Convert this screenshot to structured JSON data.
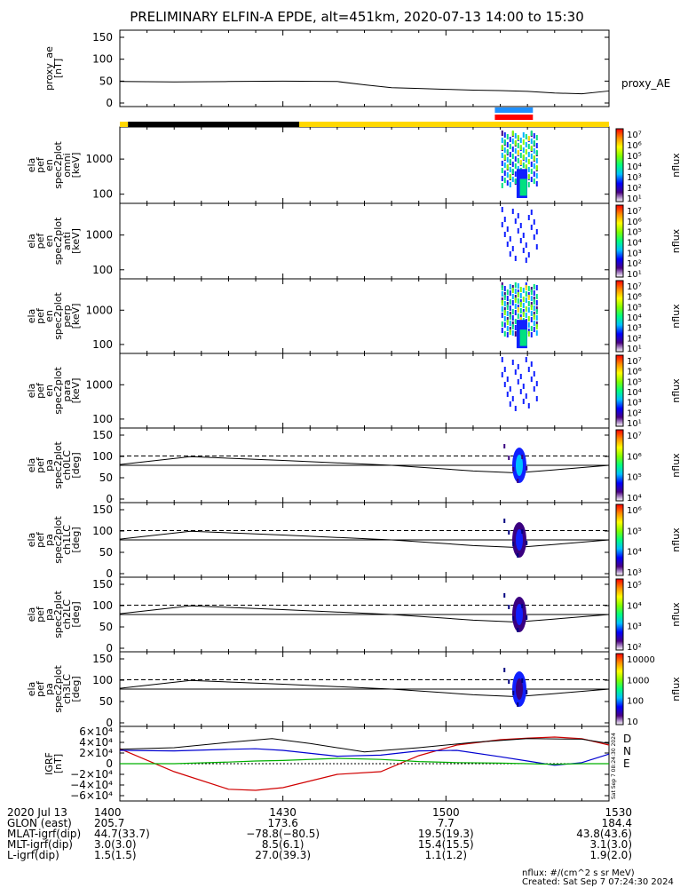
{
  "title": "PRELIMINARY ELFIN-A EPDE, alt=451km, 2020-07-13 14:00 to 15:30",
  "panels": [
    {
      "id": "proxy_ae",
      "label_lines": [
        "proxy_ae",
        "[nT]"
      ],
      "y_ticks": [
        "150",
        "100",
        "50",
        "0"
      ],
      "right_label": "proxy_AE"
    },
    {
      "id": "en_omni",
      "label_lines": [
        "ela",
        "pef",
        "en",
        "spec2plot",
        "omni",
        "[keV]"
      ],
      "y_ticks": [
        "1000",
        "100"
      ]
    },
    {
      "id": "en_anti",
      "label_lines": [
        "ela",
        "pef",
        "en",
        "spec2plot",
        "anti",
        "[keV]"
      ],
      "y_ticks": [
        "1000",
        "100"
      ]
    },
    {
      "id": "en_perp",
      "label_lines": [
        "ela",
        "pef",
        "en",
        "spec2plot",
        "perp",
        "[keV]"
      ],
      "y_ticks": [
        "1000",
        "100"
      ]
    },
    {
      "id": "en_para",
      "label_lines": [
        "ela",
        "pef",
        "en",
        "spec2plot",
        "para",
        "[keV]"
      ],
      "y_ticks": [
        "1000",
        "100"
      ]
    },
    {
      "id": "pa_ch0",
      "label_lines": [
        "ela",
        "pef",
        "pa",
        "spec2plot",
        "ch0LC",
        "[deg]"
      ],
      "y_ticks": [
        "150",
        "100",
        "50",
        "0"
      ]
    },
    {
      "id": "pa_ch1",
      "label_lines": [
        "ela",
        "pef",
        "pa",
        "spec2plot",
        "ch1LC",
        "[deg]"
      ],
      "y_ticks": [
        "150",
        "100",
        "50",
        "0"
      ]
    },
    {
      "id": "pa_ch2",
      "label_lines": [
        "ela",
        "pef",
        "pa",
        "spec2plot",
        "ch2LC",
        "[deg]"
      ],
      "y_ticks": [
        "150",
        "100",
        "50",
        "0"
      ]
    },
    {
      "id": "pa_ch3",
      "label_lines": [
        "ela",
        "pef",
        "pa",
        "spec2plot",
        "ch3LC",
        "[deg]"
      ],
      "y_ticks": [
        "150",
        "100",
        "50",
        "0"
      ]
    },
    {
      "id": "bgrf",
      "label_lines": [
        "IGRF",
        "[nT]"
      ],
      "y_ticks": [
        "6×10⁴",
        "4×10⁴",
        "2×10⁴",
        "0",
        "−2×10⁴",
        "−4×10⁴",
        "−6×10⁴"
      ],
      "legend": [
        "D",
        "N",
        "E"
      ]
    }
  ],
  "colorbars": [
    {
      "label": "nflux",
      "ticks": [
        "10⁷",
        "10⁶",
        "10⁵",
        "10⁴",
        "10³",
        "10²",
        "10¹"
      ]
    },
    {
      "label": "nflux",
      "ticks": [
        "10⁷",
        "10⁶",
        "10⁵",
        "10⁴",
        "10³",
        "10²",
        "10¹"
      ]
    },
    {
      "label": "nflux",
      "ticks": [
        "10⁷",
        "10⁶",
        "10⁵",
        "10⁴",
        "10³",
        "10²",
        "10¹"
      ]
    },
    {
      "label": "nflux",
      "ticks": [
        "10⁷",
        "10⁶",
        "10⁵",
        "10⁴",
        "10³",
        "10²",
        "10¹"
      ]
    },
    {
      "label": "nflux",
      "ticks": [
        "10⁷",
        "10⁶",
        "10⁵",
        "10⁴"
      ]
    },
    {
      "label": "nflux",
      "ticks": [
        "10⁶",
        "10⁵",
        "10⁴",
        "10³"
      ]
    },
    {
      "label": "nflux",
      "ticks": [
        "10⁵",
        "10⁴",
        "10³",
        "10²"
      ]
    },
    {
      "label": "nflux",
      "ticks": [
        "10000",
        "1000",
        "100",
        "10"
      ]
    }
  ],
  "colors": {
    "D": "#d00000",
    "N": "#0000d0",
    "E": "#00b000",
    "yellow": "#ffd800",
    "blue_bar": "#1e90ff",
    "red_bar": "#ff0000"
  },
  "time_axis": {
    "rows": [
      {
        "label": "2020 Jul 13",
        "values": [
          "1400",
          "1430",
          "1500",
          "1530"
        ]
      },
      {
        "label": "GLON (east)",
        "values": [
          "205.7",
          "173.6",
          "7.7",
          "184.4"
        ]
      },
      {
        "label": "MLAT-igrf(dip)",
        "values": [
          "44.7(33.7)",
          "−78.8(−80.5)",
          "19.5(19.3)",
          "43.8(43.6)"
        ]
      },
      {
        "label": "MLT-igrf(dip)",
        "values": [
          "3.0(3.0)",
          "8.5(6.1)",
          "15.4(15.5)",
          "3.1(3.0)"
        ]
      },
      {
        "label": "L-igrf(dip)",
        "values": [
          "1.5(1.5)",
          "27.0(39.3)",
          "1.1(1.2)",
          "1.9(2.0)"
        ]
      }
    ]
  },
  "side_stamp": "Sat Sep  7 08:24:30 2024",
  "footer": {
    "line1": "nflux: #/(cm^2 s sr MeV)",
    "line2": "Created: Sat Sep  7 07:24:30 2024"
  },
  "chart_data": {
    "type": "line",
    "title": "PRELIMINARY ELFIN-A EPDE, alt=451km, 2020-07-13 14:00 to 15:30",
    "x_unit": "minutes after 14:00 UT",
    "xlim": [
      0,
      90
    ],
    "proxy_ae": {
      "ylabel": "proxy_ae [nT]",
      "ylim": [
        0,
        160
      ],
      "x": [
        0,
        10,
        20,
        30,
        40,
        45,
        50,
        55,
        60,
        65,
        70,
        75,
        80,
        85,
        90
      ],
      "y": [
        48,
        47,
        48,
        49,
        48,
        40,
        33,
        31,
        29,
        27,
        26,
        24,
        20,
        18,
        25
      ]
    },
    "science_zone_bars": {
      "black": [
        1.5,
        33
      ],
      "yellow": [
        [
          0,
          1.5
        ],
        [
          33,
          90
        ]
      ],
      "blue": [
        69,
        76
      ],
      "red": [
        69,
        76
      ]
    },
    "pa_reference_lines": {
      "ylim": [
        0,
        180
      ],
      "dashed_deg": 115,
      "x": [
        0,
        13,
        30,
        50,
        65,
        73,
        80,
        90
      ],
      "solid_upper": [
        92,
        113,
        103,
        90,
        75,
        70,
        78,
        90
      ],
      "solid_lower": [
        90,
        90,
        90,
        90,
        90,
        90,
        90,
        90
      ]
    },
    "igrf_field": {
      "ylabel": "IGRF [nT]",
      "ylim": [
        -60000,
        60000
      ],
      "x": [
        0,
        10,
        20,
        25,
        30,
        40,
        48,
        55,
        62,
        70,
        75,
        80,
        85,
        90
      ],
      "series": [
        {
          "name": "D",
          "values": [
            28000,
            -15000,
            -48000,
            -50000,
            -45000,
            -20000,
            -15000,
            15000,
            35000,
            45000,
            48000,
            50000,
            47000,
            35000
          ]
        },
        {
          "name": "N",
          "values": [
            25000,
            24000,
            27000,
            28000,
            25000,
            14000,
            16000,
            24000,
            25000,
            13000,
            5000,
            -3000,
            2000,
            18000
          ]
        },
        {
          "name": "E",
          "values": [
            0,
            0,
            3000,
            5000,
            6000,
            10000,
            8000,
            4000,
            2000,
            1000,
            0,
            -1000,
            0,
            0
          ]
        }
      ],
      "black_magnitude": {
        "x": [
          0,
          10,
          20,
          28,
          35,
          45,
          55,
          65,
          75,
          85,
          90
        ],
        "values": [
          27000,
          30000,
          40000,
          47000,
          38000,
          22000,
          30000,
          40000,
          47000,
          46000,
          38000
        ]
      }
    }
  }
}
